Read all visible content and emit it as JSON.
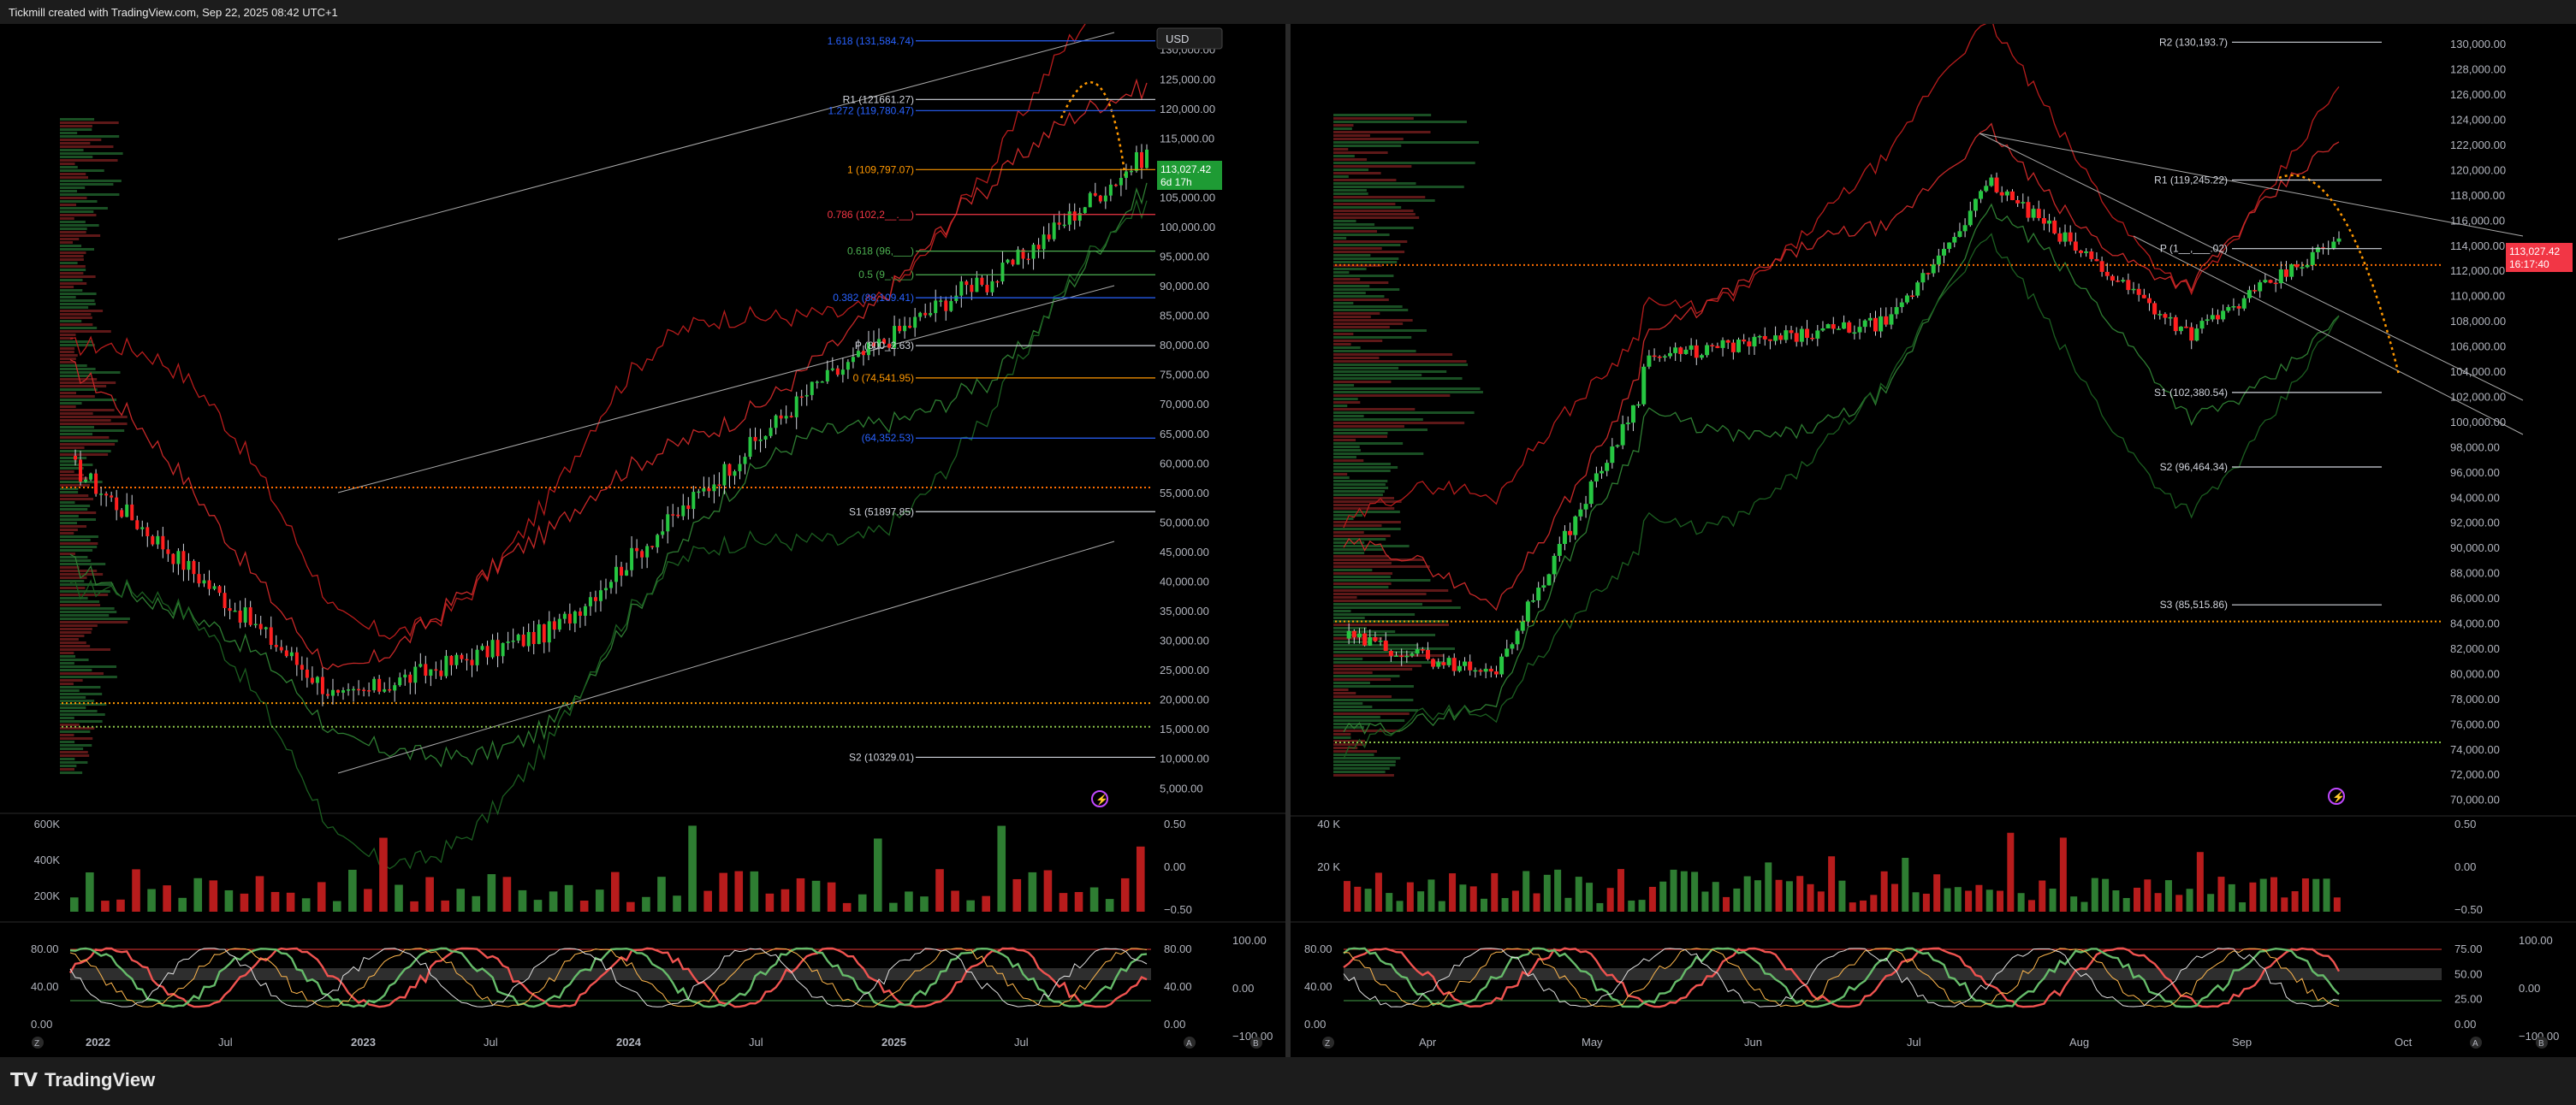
{
  "header": {
    "text": "Tickmill created with TradingView.com, Sep 22, 2025 08:42 UTC+1"
  },
  "footer": {
    "brand": "TradingView"
  },
  "colors": {
    "up": "#26a69a",
    "green": "#4caf50",
    "red": "#f23645",
    "orange": "#ff9800",
    "blue": "#2962ff",
    "white": "#d1d4dc"
  },
  "chart_data": [
    {
      "type": "candlestick",
      "pane": "left",
      "currency": "USD",
      "last_price": "113,027.42",
      "countdown": "6d 17h",
      "y_ticks": [
        "130,000.00",
        "125,000.00",
        "120,000.00",
        "115,000.00",
        "105,000.00",
        "100,000.00",
        "95,000.00",
        "90,000.00",
        "85,000.00",
        "80,000.00",
        "75,000.00",
        "70,000.00",
        "65,000.00",
        "60,000.00",
        "55,000.00",
        "50,000.00",
        "45,000.00",
        "40,000.00",
        "35,000.00",
        "30,000.00",
        "25,000.00",
        "20,000.00",
        "15,000.00",
        "10,000.00",
        "5,000.00"
      ],
      "x_ticks": [
        "2022",
        "Jul",
        "2023",
        "Jul",
        "2024",
        "Jul",
        "2025",
        "Jul"
      ],
      "levels": [
        {
          "label": "1.618 (131,584.74)",
          "value": 131584.74,
          "color": "#2962ff"
        },
        {
          "label": "R1 (121661.27)",
          "value": 121661.27,
          "color": "#d1d4dc"
        },
        {
          "label": "1.272 (119,780.47)",
          "value": 119780.47,
          "color": "#2962ff"
        },
        {
          "label": "1 (109,797.07)",
          "value": 109797.07,
          "color": "#ff9800"
        },
        {
          "label": "0.786 (102,2__.__)",
          "value": 102200,
          "color": "#f23645"
        },
        {
          "label": "0.618 (96,___)",
          "value": 96000,
          "color": "#4caf50"
        },
        {
          "label": "0.5 (9_,___)",
          "value": 92000,
          "color": "#4caf50"
        },
        {
          "label": "0.382 (88,109.41)",
          "value": 88109.41,
          "color": "#2962ff"
        },
        {
          "label": "P (800_2.63)",
          "value": 80000,
          "color": "#d1d4dc"
        },
        {
          "label": "0 (74,541.95)",
          "value": 74541.95,
          "color": "#ff9800"
        },
        {
          "label": "(64,352.53)",
          "value": 64352.53,
          "color": "#2962ff"
        },
        {
          "label": "S1 (51897.85)",
          "value": 51897.85,
          "color": "#d1d4dc"
        },
        {
          "label": "S2 (10329.01)",
          "value": 10329.01,
          "color": "#d1d4dc"
        }
      ],
      "volume": {
        "ticks": [
          "600K",
          "400K",
          "200K"
        ],
        "right_ticks": [
          "0.50",
          "0.00",
          "−0.50"
        ]
      },
      "oscillator": {
        "left_ticks": [
          "80.00",
          "40.00",
          "0.00"
        ],
        "mid_ticks": [
          "80.00",
          "40.00",
          "0.00"
        ],
        "right_ticks": [
          "100.00",
          "0.00",
          "−100.00"
        ]
      },
      "nav_letters": [
        "Z",
        "A",
        "B"
      ]
    },
    {
      "type": "candlestick",
      "pane": "right",
      "last_price": "113,027.42",
      "countdown": "16:17:40",
      "y_ticks": [
        "130,000.00",
        "128,000.00",
        "126,000.00",
        "124,000.00",
        "122,000.00",
        "120,000.00",
        "118,000.00",
        "116,000.00",
        "114,000.00",
        "112,000.00",
        "110,000.00",
        "108,000.00",
        "106,000.00",
        "104,000.00",
        "102,000.00",
        "100,000.00",
        "98,000.00",
        "96,000.00",
        "94,000.00",
        "92,000.00",
        "90,000.00",
        "88,000.00",
        "86,000.00",
        "84,000.00",
        "82,000.00",
        "80,000.00",
        "78,000.00",
        "76,000.00",
        "74,000.00",
        "72,000.00",
        "70,000.00"
      ],
      "x_ticks": [
        "Apr",
        "May",
        "Jun",
        "Jul",
        "Aug",
        "Sep",
        "Oct"
      ],
      "levels": [
        {
          "label": "R2 (130,193.7)",
          "value": 130193.7,
          "color": "#d1d4dc"
        },
        {
          "label": "R1 (119,245.22)",
          "value": 119245.22,
          "color": "#d1d4dc"
        },
        {
          "label": "P (1__,___.02)",
          "value": 113800,
          "color": "#d1d4dc"
        },
        {
          "label": "S1 (102,380.54)",
          "value": 102380.54,
          "color": "#d1d4dc"
        },
        {
          "label": "S2 (96,464.34)",
          "value": 96464.34,
          "color": "#d1d4dc"
        },
        {
          "label": "S3 (85,515.86)",
          "value": 85515.86,
          "color": "#d1d4dc"
        }
      ],
      "volume": {
        "ticks": [
          "40 K",
          "20 K"
        ],
        "right_ticks": [
          "0.50",
          "0.00",
          "−0.50"
        ]
      },
      "oscillator": {
        "left_ticks": [
          "80.00",
          "40.00",
          "0.00"
        ],
        "mid_ticks": [
          "75.00",
          "50.00",
          "25.00",
          "0.00"
        ],
        "right_ticks": [
          "100.00",
          "0.00",
          "−100.00"
        ]
      },
      "nav_letters": [
        "Z",
        "A",
        "B"
      ]
    }
  ]
}
